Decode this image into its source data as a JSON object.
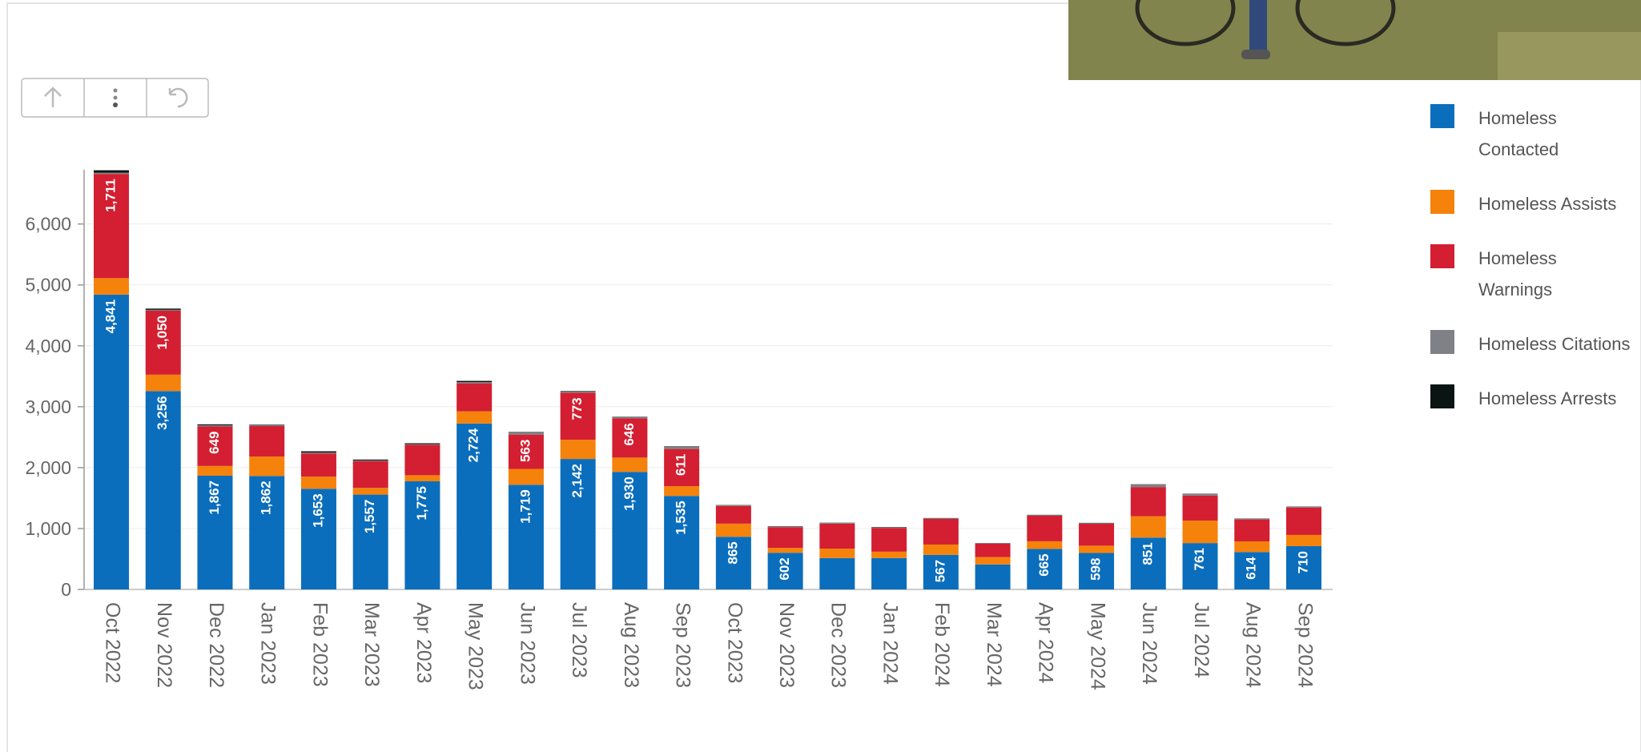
{
  "chart_data": {
    "type": "stacked-bar",
    "categories": [
      "Oct 2022",
      "Nov 2022",
      "Dec 2022",
      "Jan 2023",
      "Feb 2023",
      "Mar 2023",
      "Apr 2023",
      "May 2023",
      "Jun 2023",
      "Jul 2023",
      "Aug 2023",
      "Sep 2023",
      "Oct 2023",
      "Nov 2023",
      "Dec 2023",
      "Jan 2024",
      "Feb 2024",
      "Mar 2024",
      "Apr 2024",
      "May 2024",
      "Jun 2024",
      "Jul 2024",
      "Aug 2024",
      "Sep 2024"
    ],
    "series": [
      {
        "name": "Homeless Contacted",
        "color": "#0a6ebd",
        "values": [
          4841,
          3256,
          1867,
          1862,
          1653,
          1557,
          1775,
          2724,
          1719,
          2142,
          1930,
          1535,
          865,
          602,
          515,
          515,
          567,
          410,
          665,
          598,
          851,
          761,
          614,
          710
        ],
        "value_labels": [
          "4,841",
          "3,256",
          "1,867",
          "1,862",
          "1,653",
          "1,557",
          "1,775",
          "2,724",
          "1,719",
          "2,142",
          "1,930",
          "1,535",
          "865",
          "602",
          null,
          null,
          "567",
          null,
          "665",
          "598",
          "851",
          "761",
          "614",
          "710"
        ]
      },
      {
        "name": "Homeless Assists",
        "color": "#f5820b",
        "values": [
          270,
          270,
          160,
          320,
          200,
          110,
          100,
          200,
          260,
          315,
          235,
          160,
          215,
          80,
          155,
          105,
          170,
          120,
          125,
          120,
          350,
          370,
          175,
          185
        ]
      },
      {
        "name": "Homeless Warnings",
        "color": "#d31f31",
        "values": [
          1711,
          1050,
          649,
          500,
          380,
          440,
          500,
          460,
          563,
          773,
          646,
          611,
          290,
          340,
          410,
          390,
          420,
          220,
          420,
          360,
          480,
          410,
          360,
          450
        ],
        "value_labels": [
          "1,711",
          "1,050",
          "649",
          null,
          null,
          null,
          null,
          null,
          "563",
          "773",
          "646",
          "611",
          null,
          null,
          null,
          null,
          null,
          null,
          null,
          null,
          null,
          null,
          null,
          null
        ]
      },
      {
        "name": "Homeless Citations",
        "color": "#7f8186",
        "values": [
          20,
          15,
          20,
          20,
          15,
          10,
          10,
          20,
          40,
          25,
          20,
          40,
          10,
          10,
          10,
          10,
          10,
          5,
          10,
          10,
          40,
          25,
          10,
          10
        ]
      },
      {
        "name": "Homeless Arrests",
        "color": "#0a1412",
        "values": [
          40,
          20,
          15,
          5,
          20,
          15,
          15,
          20,
          5,
          5,
          5,
          5,
          5,
          5,
          5,
          5,
          5,
          5,
          5,
          5,
          5,
          5,
          5,
          5
        ]
      }
    ],
    "ylim": [
      0,
      6890
    ],
    "yticks": [
      0,
      {
        "value": 1000,
        "label": "1,000"
      },
      {
        "value": 2000,
        "label": "2,000"
      },
      {
        "value": 3000,
        "label": "3,000"
      },
      {
        "value": 4000,
        "label": "4,000"
      },
      {
        "value": 5000,
        "label": "5,000"
      },
      {
        "value": 6000,
        "label": "6,000"
      }
    ],
    "grid": true,
    "legend": "right"
  }
}
